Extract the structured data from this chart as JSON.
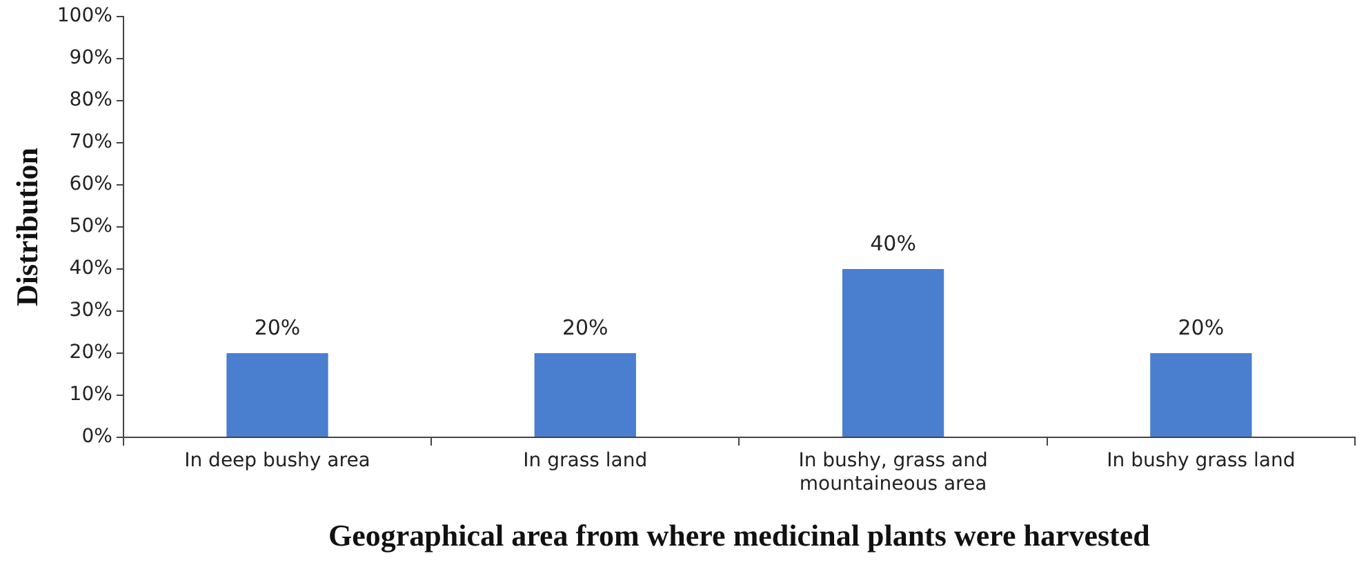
{
  "chart_data": {
    "type": "bar",
    "categories": [
      "In deep bushy area",
      "In grass land",
      "In bushy, grass and mountaineous area",
      "In bushy grass land"
    ],
    "values": [
      20,
      20,
      40,
      20
    ],
    "color": "#4a7ecf",
    "xlabel": "Geographical area from where medicinal plants were harvested",
    "ylabel": "Distribution",
    "ylim": [
      0,
      100
    ],
    "yticks": [
      {
        "value": 0,
        "label": "0%"
      },
      {
        "value": 10,
        "label": "10%"
      },
      {
        "value": 20,
        "label": "20%"
      },
      {
        "value": 30,
        "label": "30%"
      },
      {
        "value": 40,
        "label": "40%"
      },
      {
        "value": 50,
        "label": "50%"
      },
      {
        "value": 60,
        "label": "60%"
      },
      {
        "value": 70,
        "label": "70%"
      },
      {
        "value": 80,
        "label": "80%"
      },
      {
        "value": 90,
        "label": "90%"
      },
      {
        "value": 100,
        "label": "100%"
      }
    ],
    "value_labels": [
      "20%",
      "20%",
      "40%",
      "20%"
    ],
    "grid": false,
    "legend": false
  }
}
